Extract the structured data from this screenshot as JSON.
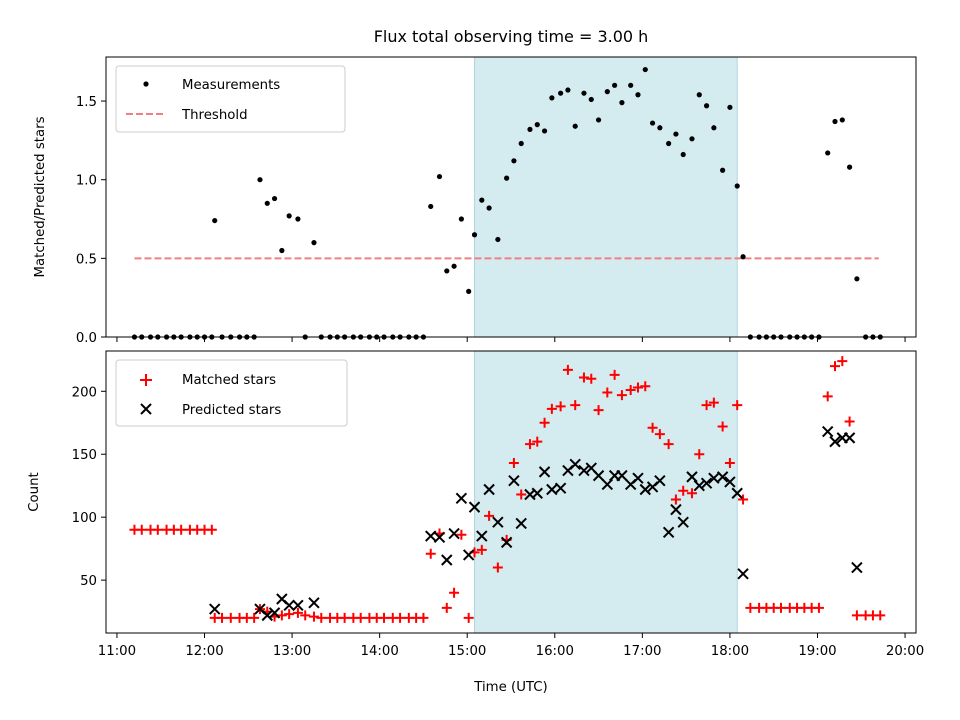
{
  "chart_data": [
    {
      "type": "scatter",
      "title": "Flux total observing time = 3.00 h",
      "xlabel": "",
      "ylabel": "Matched/Predicted stars",
      "xlim": [
        "11:00",
        "20:00"
      ],
      "ylim": [
        0,
        1.78
      ],
      "yticks": [
        0.0,
        0.5,
        1.0,
        1.5
      ],
      "ytick_labels": [
        "0.0",
        "0.5",
        "1.0",
        "1.5"
      ],
      "legend": {
        "placement": "top-left",
        "entries": [
          "Measurements",
          "Threshold"
        ]
      },
      "highlight_span": {
        "start": "15:05",
        "end": "18:05",
        "color": "#d4ebf0"
      },
      "threshold": {
        "value": 0.5,
        "start": "11:12",
        "end": "19:42",
        "color": "#f08080"
      },
      "series": [
        {
          "name": "Measurements",
          "color": "#000000",
          "points": [
            [
              "11:12",
              0
            ],
            [
              "11:17",
              0
            ],
            [
              "11:23",
              0
            ],
            [
              "11:28",
              0
            ],
            [
              "11:34",
              0
            ],
            [
              "11:39",
              0
            ],
            [
              "11:44",
              0
            ],
            [
              "11:50",
              0
            ],
            [
              "11:55",
              0
            ],
            [
              "12:00",
              0
            ],
            [
              "12:05",
              0
            ],
            [
              "12:07",
              0.74
            ],
            [
              "12:12",
              0
            ],
            [
              "12:18",
              0
            ],
            [
              "12:24",
              0
            ],
            [
              "12:29",
              0
            ],
            [
              "12:34",
              0
            ],
            [
              "12:38",
              1.0
            ],
            [
              "12:43",
              0.85
            ],
            [
              "12:48",
              0.88
            ],
            [
              "12:53",
              0.55
            ],
            [
              "12:58",
              0.77
            ],
            [
              "13:04",
              0.75
            ],
            [
              "13:09",
              0
            ],
            [
              "13:15",
              0.6
            ],
            [
              "13:20",
              0
            ],
            [
              "13:26",
              0
            ],
            [
              "13:31",
              0
            ],
            [
              "13:36",
              0
            ],
            [
              "13:42",
              0
            ],
            [
              "13:47",
              0
            ],
            [
              "13:53",
              0
            ],
            [
              "13:58",
              0
            ],
            [
              "14:03",
              0
            ],
            [
              "14:09",
              0
            ],
            [
              "14:14",
              0
            ],
            [
              "14:20",
              0
            ],
            [
              "14:25",
              0
            ],
            [
              "14:30",
              0
            ],
            [
              "14:35",
              0.83
            ],
            [
              "14:41",
              1.02
            ],
            [
              "14:46",
              0.42
            ],
            [
              "14:51",
              0.45
            ],
            [
              "14:56",
              0.75
            ],
            [
              "15:01",
              0.29
            ],
            [
              "15:05",
              0.65
            ],
            [
              "15:10",
              0.87
            ],
            [
              "15:15",
              0.82
            ],
            [
              "15:21",
              0.62
            ],
            [
              "15:27",
              1.01
            ],
            [
              "15:32",
              1.12
            ],
            [
              "15:37",
              1.23
            ],
            [
              "15:43",
              1.32
            ],
            [
              "15:48",
              1.35
            ],
            [
              "15:53",
              1.31
            ],
            [
              "15:58",
              1.52
            ],
            [
              "16:04",
              1.55
            ],
            [
              "16:09",
              1.57
            ],
            [
              "16:14",
              1.34
            ],
            [
              "16:20",
              1.55
            ],
            [
              "16:25",
              1.51
            ],
            [
              "16:30",
              1.38
            ],
            [
              "16:36",
              1.56
            ],
            [
              "16:41",
              1.6
            ],
            [
              "16:46",
              1.49
            ],
            [
              "16:52",
              1.6
            ],
            [
              "16:57",
              1.54
            ],
            [
              "17:02",
              1.7
            ],
            [
              "17:07",
              1.36
            ],
            [
              "17:12",
              1.33
            ],
            [
              "17:18",
              1.23
            ],
            [
              "17:23",
              1.29
            ],
            [
              "17:28",
              1.16
            ],
            [
              "17:34",
              1.26
            ],
            [
              "17:39",
              1.54
            ],
            [
              "17:44",
              1.47
            ],
            [
              "17:49",
              1.33
            ],
            [
              "17:55",
              1.06
            ],
            [
              "18:00",
              1.46
            ],
            [
              "18:05",
              0.96
            ],
            [
              "18:09",
              0.51
            ],
            [
              "18:14",
              0
            ],
            [
              "18:20",
              0
            ],
            [
              "18:25",
              0
            ],
            [
              "18:30",
              0
            ],
            [
              "18:35",
              0
            ],
            [
              "18:41",
              0
            ],
            [
              "18:46",
              0
            ],
            [
              "18:51",
              0
            ],
            [
              "18:56",
              0
            ],
            [
              "19:01",
              0
            ],
            [
              "19:07",
              1.17
            ],
            [
              "19:12",
              1.37
            ],
            [
              "19:17",
              1.38
            ],
            [
              "19:22",
              1.08
            ],
            [
              "19:27",
              0.37
            ],
            [
              "19:33",
              0
            ],
            [
              "19:38",
              0
            ],
            [
              "19:43",
              0
            ]
          ]
        }
      ]
    },
    {
      "type": "scatter",
      "title": "",
      "xlabel": "Time (UTC)",
      "ylabel": "Count",
      "xlim": [
        "11:00",
        "20:00"
      ],
      "ylim": [
        8,
        232
      ],
      "xtick_labels": [
        "11:00",
        "12:00",
        "13:00",
        "14:00",
        "15:00",
        "16:00",
        "17:00",
        "18:00",
        "19:00",
        "20:00"
      ],
      "yticks": [
        50,
        100,
        150,
        200
      ],
      "ytick_labels": [
        "50",
        "100",
        "150",
        "200"
      ],
      "legend": {
        "placement": "top-left",
        "entries": [
          "Matched stars",
          "Predicted stars"
        ]
      },
      "highlight_span": {
        "start": "15:05",
        "end": "18:05",
        "color": "#d4ebf0"
      },
      "series": [
        {
          "name": "Matched stars",
          "color": "#ff0000",
          "marker": "+",
          "points": [
            [
              "11:12",
              90
            ],
            [
              "11:17",
              90
            ],
            [
              "11:23",
              90
            ],
            [
              "11:28",
              90
            ],
            [
              "11:34",
              90
            ],
            [
              "11:39",
              90
            ],
            [
              "11:44",
              90
            ],
            [
              "11:50",
              90
            ],
            [
              "11:55",
              90
            ],
            [
              "12:00",
              90
            ],
            [
              "12:05",
              90
            ],
            [
              "12:07",
              20
            ],
            [
              "12:12",
              20
            ],
            [
              "12:18",
              20
            ],
            [
              "12:24",
              20
            ],
            [
              "12:29",
              20
            ],
            [
              "12:34",
              20
            ],
            [
              "12:38",
              27
            ],
            [
              "12:43",
              25
            ],
            [
              "12:48",
              21
            ],
            [
              "12:53",
              22
            ],
            [
              "12:58",
              23
            ],
            [
              "13:04",
              24
            ],
            [
              "13:09",
              22
            ],
            [
              "13:15",
              21
            ],
            [
              "13:20",
              20
            ],
            [
              "13:26",
              20
            ],
            [
              "13:31",
              20
            ],
            [
              "13:36",
              20
            ],
            [
              "13:42",
              20
            ],
            [
              "13:47",
              20
            ],
            [
              "13:53",
              20
            ],
            [
              "13:58",
              20
            ],
            [
              "14:03",
              20
            ],
            [
              "14:09",
              20
            ],
            [
              "14:14",
              20
            ],
            [
              "14:20",
              20
            ],
            [
              "14:25",
              20
            ],
            [
              "14:30",
              20
            ],
            [
              "14:35",
              71
            ],
            [
              "14:41",
              87
            ],
            [
              "14:46",
              28
            ],
            [
              "14:51",
              40
            ],
            [
              "14:56",
              86
            ],
            [
              "15:01",
              20
            ],
            [
              "15:05",
              72
            ],
            [
              "15:10",
              74
            ],
            [
              "15:15",
              101
            ],
            [
              "15:21",
              60
            ],
            [
              "15:27",
              82
            ],
            [
              "15:32",
              143
            ],
            [
              "15:37",
              118
            ],
            [
              "15:43",
              158
            ],
            [
              "15:48",
              160
            ],
            [
              "15:53",
              175
            ],
            [
              "15:58",
              186
            ],
            [
              "16:04",
              188
            ],
            [
              "16:09",
              217
            ],
            [
              "16:14",
              189
            ],
            [
              "16:20",
              211
            ],
            [
              "16:25",
              210
            ],
            [
              "16:30",
              185
            ],
            [
              "16:36",
              199
            ],
            [
              "16:41",
              213
            ],
            [
              "16:46",
              197
            ],
            [
              "16:52",
              201
            ],
            [
              "16:57",
              203
            ],
            [
              "17:02",
              204
            ],
            [
              "17:07",
              171
            ],
            [
              "17:12",
              166
            ],
            [
              "17:18",
              158
            ],
            [
              "17:23",
              114
            ],
            [
              "17:28",
              121
            ],
            [
              "17:34",
              119
            ],
            [
              "17:39",
              150
            ],
            [
              "17:44",
              189
            ],
            [
              "17:49",
              191
            ],
            [
              "17:55",
              172
            ],
            [
              "18:00",
              143
            ],
            [
              "18:05",
              189
            ],
            [
              "18:09",
              114
            ],
            [
              "18:14",
              28
            ],
            [
              "18:20",
              28
            ],
            [
              "18:25",
              28
            ],
            [
              "18:30",
              28
            ],
            [
              "18:35",
              28
            ],
            [
              "18:41",
              28
            ],
            [
              "18:46",
              28
            ],
            [
              "18:51",
              28
            ],
            [
              "18:56",
              28
            ],
            [
              "19:01",
              28
            ],
            [
              "19:07",
              196
            ],
            [
              "19:12",
              220
            ],
            [
              "19:17",
              224
            ],
            [
              "19:22",
              176
            ],
            [
              "19:27",
              22
            ],
            [
              "19:33",
              22
            ],
            [
              "19:38",
              22
            ],
            [
              "19:43",
              22
            ]
          ]
        },
        {
          "name": "Predicted stars",
          "color": "#000000",
          "marker": "x",
          "points": [
            [
              "12:07",
              27
            ],
            [
              "12:38",
              27
            ],
            [
              "12:43",
              22
            ],
            [
              "12:48",
              24
            ],
            [
              "12:53",
              35
            ],
            [
              "12:58",
              30
            ],
            [
              "13:04",
              30
            ],
            [
              "13:15",
              32
            ],
            [
              "14:35",
              85
            ],
            [
              "14:41",
              84
            ],
            [
              "14:46",
              66
            ],
            [
              "14:51",
              87
            ],
            [
              "14:56",
              115
            ],
            [
              "15:01",
              70
            ],
            [
              "15:05",
              108
            ],
            [
              "15:10",
              85
            ],
            [
              "15:15",
              122
            ],
            [
              "15:21",
              96
            ],
            [
              "15:27",
              80
            ],
            [
              "15:32",
              129
            ],
            [
              "15:37",
              95
            ],
            [
              "15:43",
              118
            ],
            [
              "15:48",
              119
            ],
            [
              "15:53",
              136
            ],
            [
              "15:58",
              122
            ],
            [
              "16:04",
              123
            ],
            [
              "16:09",
              137
            ],
            [
              "16:14",
              142
            ],
            [
              "16:20",
              137
            ],
            [
              "16:25",
              139
            ],
            [
              "16:30",
              133
            ],
            [
              "16:36",
              126
            ],
            [
              "16:41",
              133
            ],
            [
              "16:46",
              133
            ],
            [
              "16:52",
              126
            ],
            [
              "16:57",
              131
            ],
            [
              "17:02",
              122
            ],
            [
              "17:07",
              124
            ],
            [
              "17:12",
              129
            ],
            [
              "17:18",
              88
            ],
            [
              "17:23",
              106
            ],
            [
              "17:28",
              96
            ],
            [
              "17:34",
              132
            ],
            [
              "17:39",
              125
            ],
            [
              "17:44",
              127
            ],
            [
              "17:49",
              131
            ],
            [
              "17:55",
              132
            ],
            [
              "18:00",
              128
            ],
            [
              "18:05",
              119
            ],
            [
              "18:09",
              55
            ],
            [
              "19:07",
              168
            ],
            [
              "19:12",
              160
            ],
            [
              "19:17",
              163
            ],
            [
              "19:22",
              163
            ],
            [
              "19:27",
              60
            ]
          ]
        }
      ]
    }
  ]
}
